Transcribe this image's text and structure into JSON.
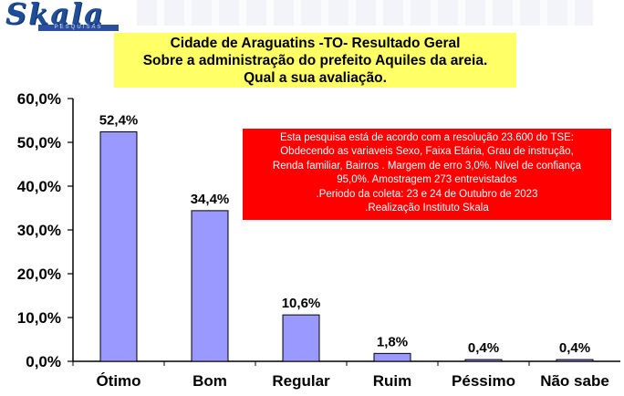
{
  "logo": {
    "name": "Skala",
    "sub": "PESQUISAS"
  },
  "title_lines": [
    "Cidade de Araguatins -TO- Resultado Geral",
    "Sobre a administração do prefeito Aquiles da areia.",
    "Qual a sua avaliação."
  ],
  "note_lines": [
    "Esta pesquisa está de acordo com a resolução 23.600 do TSE:",
    "Obdecendo as variaveis Sexo, Faixa Etária, Grau de instrução,",
    "Renda familiar, Bairros . Margem de erro 3,0%. Nível de confiança",
    "95,0%. Amostragem 273 entrevistados",
    ".Periodo da coleta: 23 e 24 de Outubro de 2023",
    ".Realização Instituto Skala"
  ],
  "colors": {
    "bar": "#9999ff",
    "title_bg": "#ffff66",
    "note_bg": "#ff0000",
    "logo": "#1f4e99"
  },
  "chart_data": {
    "type": "bar",
    "title": "Cidade de Araguatins -TO- Resultado Geral Sobre a administração do prefeito Aquiles da areia. Qual a sua avaliação.",
    "xlabel": "",
    "ylabel": "",
    "categories": [
      "Ótimo",
      "Bom",
      "Regular",
      "Ruim",
      "Péssimo",
      "Não sabe"
    ],
    "values": [
      52.4,
      34.4,
      10.6,
      1.8,
      0.4,
      0.4
    ],
    "data_labels": [
      "52,4%",
      "34,4%",
      "10,6%",
      "1,8%",
      "0,4%",
      "0,4%"
    ],
    "ylim": [
      0,
      60
    ],
    "yticks": [
      0,
      10,
      20,
      30,
      40,
      50,
      60
    ],
    "ytick_labels": [
      "0,0%",
      "10,0%",
      "20,0%",
      "30,0%",
      "40,0%",
      "50,0%",
      "60,0%"
    ],
    "grid": false,
    "legend": "none"
  }
}
